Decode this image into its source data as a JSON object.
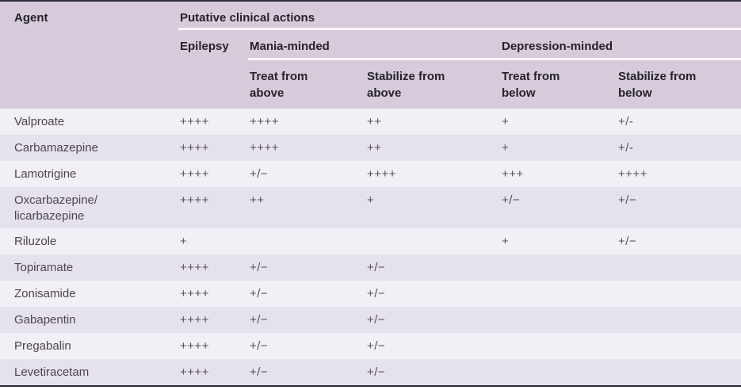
{
  "colors": {
    "rule": "#2b2b3d",
    "header-bg": "#d7cadb",
    "header-text": "#26222b",
    "row-light": "#f2eff6",
    "row-dark": "#e6e2ed",
    "name-text": "#4b4550",
    "symbol-text": "#56505c"
  },
  "table": {
    "agent_header": "Agent",
    "group_header": "Putative clinical actions",
    "epilepsy_header": "Epilepsy",
    "mania_header": "Mania-minded",
    "depression_header": "Depression-minded",
    "columns": {
      "treat_above": "Treat from\nabove",
      "stabilize_above": "Stabilize from\nabove",
      "treat_below": "Treat from\nbelow",
      "stabilize_below": "Stabilize from\nbelow"
    },
    "rows": [
      {
        "name": "Valproate",
        "cells": [
          "++++",
          "++++",
          "++",
          "+",
          "+/-"
        ]
      },
      {
        "name": "Carbamazepine",
        "cells": [
          "++++",
          "++++",
          "++",
          "+",
          "+/-"
        ]
      },
      {
        "name": "Lamotrigine",
        "cells": [
          "++++",
          "+/−",
          "++++",
          "+++",
          "++++"
        ]
      },
      {
        "name": "Oxcarbazepine/\nlicarbazepine",
        "cells": [
          "++++",
          "++",
          "+",
          "+/−",
          "+/−"
        ]
      },
      {
        "name": "Riluzole",
        "cells": [
          "+",
          "",
          "",
          "+",
          "+/−"
        ]
      },
      {
        "name": "Topiramate",
        "cells": [
          "++++",
          "+/−",
          "+/−",
          "",
          ""
        ]
      },
      {
        "name": "Zonisamide",
        "cells": [
          "++++",
          "+/−",
          "+/−",
          "",
          ""
        ]
      },
      {
        "name": "Gabapentin",
        "cells": [
          "++++",
          "+/−",
          "+/−",
          "",
          ""
        ]
      },
      {
        "name": "Pregabalin",
        "cells": [
          "++++",
          "+/−",
          "+/−",
          "",
          ""
        ]
      },
      {
        "name": "Levetiracetam",
        "cells": [
          "++++",
          "+/−",
          "+/−",
          "",
          ""
        ]
      }
    ]
  }
}
